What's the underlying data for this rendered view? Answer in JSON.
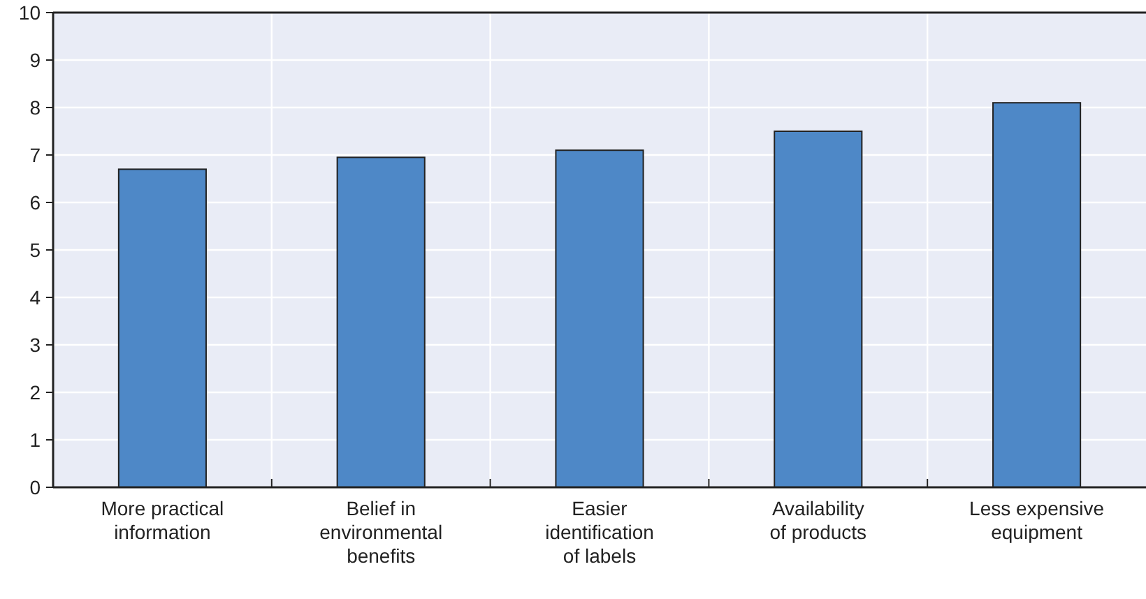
{
  "chart_data": {
    "type": "bar",
    "categories": [
      "More practical information",
      "Belief in environmental benefits",
      "Easier identification of labels",
      "Availability of products",
      "Less expensive equipment"
    ],
    "values": [
      6.7,
      6.95,
      7.1,
      7.5,
      8.1
    ],
    "color": "#4e88c7",
    "ylim": [
      0,
      10
    ],
    "yticks": [
      0,
      1,
      2,
      3,
      4,
      5,
      6,
      7,
      8,
      9,
      10
    ],
    "grid": true
  }
}
